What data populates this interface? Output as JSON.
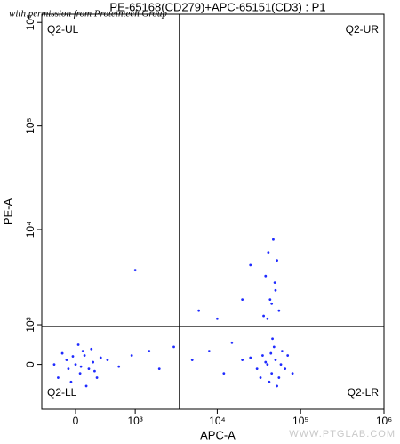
{
  "chart_data": {
    "type": "scatter",
    "title": "PE-65168(CD279)+APC-65151(CD3) : P1",
    "watermark": "with permission from Proteintech Group",
    "footer": "WWW.PTGLAB.COM",
    "x_label": "APC-A",
    "y_label": "PE-A",
    "xscale": "asinh",
    "yscale": "asinh",
    "xlim": [
      -430,
      1000000
    ],
    "ylim": [
      -1170,
      1200000
    ],
    "xticks": [
      0,
      {
        "value": 1000,
        "label": "10³"
      },
      {
        "value": 10000,
        "label": "10⁴"
      },
      {
        "value": 100000,
        "label": "10⁵"
      },
      {
        "value": 1000000,
        "label": "10⁶"
      }
    ],
    "yticks": [
      0,
      {
        "value": 1000,
        "label": "10³"
      },
      {
        "value": 10000,
        "label": "10⁴"
      },
      {
        "value": 100000,
        "label": "10⁵"
      },
      {
        "value": 1000000,
        "label": "10⁶"
      }
    ],
    "gates": {
      "x": 3500,
      "y": 950
    },
    "quadrants": {
      "ul": "Q2-UL",
      "ur": "Q2-UR",
      "ll": "Q2-LL",
      "lr": "Q2-LR"
    },
    "color": "#1f2bff",
    "x": [
      -200,
      -100,
      0,
      50,
      100,
      150,
      200,
      -50,
      80,
      -150,
      250,
      120,
      -250,
      30,
      300,
      -80,
      180,
      60,
      -30,
      220,
      400,
      600,
      900,
      1500,
      2000,
      40000,
      45000,
      50000,
      35000,
      55000,
      30000,
      60000,
      42000,
      48000,
      38000,
      65000,
      25000,
      52000,
      70000,
      44000,
      33000,
      58000,
      20000,
      80000,
      46000,
      40000,
      45000,
      50000,
      38000,
      52000,
      43000,
      47000,
      55000,
      36000,
      49000,
      41000,
      8000,
      12000,
      5000,
      15000,
      10000,
      20000,
      6000,
      3000,
      1000,
      25000
    ],
    "y": [
      -300,
      100,
      0,
      -200,
      200,
      -100,
      50,
      -400,
      300,
      250,
      -300,
      -500,
      0,
      450,
      150,
      -100,
      350,
      -50,
      180,
      -150,
      100,
      -50,
      200,
      300,
      -100,
      0,
      -200,
      100,
      200,
      -300,
      -100,
      300,
      -400,
      400,
      50,
      -100,
      150,
      -500,
      200,
      250,
      -300,
      0,
      100,
      -200,
      600,
      1200,
      1800,
      2500,
      3500,
      5000,
      2000,
      8000,
      1500,
      1300,
      3000,
      6000,
      300,
      -200,
      100,
      500,
      1200,
      2000,
      1500,
      400,
      4000,
      4500
    ]
  }
}
